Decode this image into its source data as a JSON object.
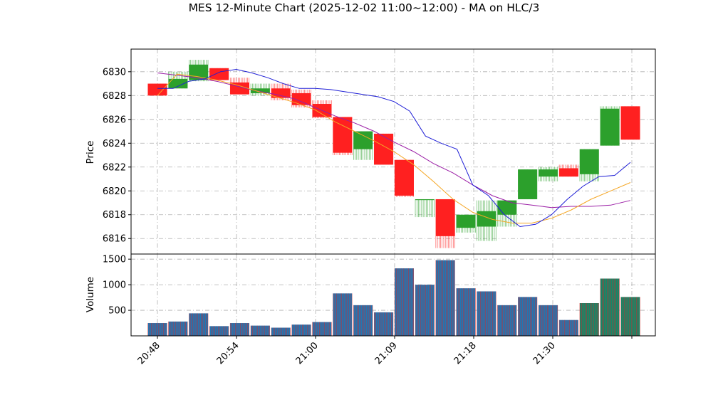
{
  "chart_data": {
    "type": "candlestick",
    "title": "MES 12-Minute Chart (2025-12-02 11:00~12:00) - MA on HLC/3",
    "price_axis": {
      "label": "Price",
      "ylim": [
        6814.7,
        6831.9
      ],
      "ticks": [
        6816,
        6818,
        6820,
        6822,
        6824,
        6826,
        6828,
        6830
      ]
    },
    "volume_axis": {
      "label": "Volume",
      "ylim": [
        0,
        1600
      ],
      "ticks": [
        500,
        1000,
        1500
      ]
    },
    "x_ticks": [
      "20:48",
      "20:54",
      "21:00",
      "21:09",
      "21:18",
      "21:30"
    ],
    "grid": true,
    "colors": {
      "up": "#2ca02c",
      "down": "#ff2020",
      "ma_short": "#1f1fd6",
      "ma_mid": "#f5a623",
      "ma_long": "#9b1fa6",
      "vol_face": "#1f77b4",
      "vol_edge": "#d62728",
      "vol_up_right": "#0f8a6a"
    },
    "candles": [
      {
        "open": 6829.0,
        "high": 6829.0,
        "low": 6828.0,
        "close": 6828.0,
        "volume": 250
      },
      {
        "open": 6828.6,
        "high": 6830.0,
        "low": 6828.6,
        "close": 6829.4,
        "volume": 280
      },
      {
        "open": 6829.3,
        "high": 6831.0,
        "low": 6829.2,
        "close": 6830.6,
        "volume": 440
      },
      {
        "open": 6830.3,
        "high": 6830.3,
        "low": 6829.3,
        "close": 6829.3,
        "volume": 190
      },
      {
        "open": 6829.1,
        "high": 6829.5,
        "low": 6828.1,
        "close": 6828.1,
        "volume": 250
      },
      {
        "open": 6828.2,
        "high": 6829.0,
        "low": 6828.0,
        "close": 6828.6,
        "volume": 200
      },
      {
        "open": 6828.6,
        "high": 6829.0,
        "low": 6827.6,
        "close": 6827.8,
        "volume": 160
      },
      {
        "open": 6828.2,
        "high": 6828.5,
        "low": 6827.0,
        "close": 6827.2,
        "volume": 220
      },
      {
        "open": 6827.3,
        "high": 6827.6,
        "low": 6826.1,
        "close": 6826.2,
        "volume": 270
      },
      {
        "open": 6826.2,
        "high": 6826.2,
        "low": 6823.0,
        "close": 6823.2,
        "volume": 830
      },
      {
        "open": 6823.5,
        "high": 6825.0,
        "low": 6822.6,
        "close": 6825.0,
        "volume": 600
      },
      {
        "open": 6824.8,
        "high": 6824.8,
        "low": 6822.2,
        "close": 6822.2,
        "volume": 460
      },
      {
        "open": 6822.6,
        "high": 6822.6,
        "low": 6819.5,
        "close": 6819.6,
        "volume": 1320
      },
      {
        "open": 6819.3,
        "high": 6819.3,
        "low": 6817.8,
        "close": 6819.3,
        "volume": 1000
      },
      {
        "open": 6819.3,
        "high": 6819.3,
        "low": 6815.2,
        "close": 6816.2,
        "volume": 1480
      },
      {
        "open": 6816.9,
        "high": 6818.0,
        "low": 6816.5,
        "close": 6818.0,
        "volume": 930
      },
      {
        "open": 6817.0,
        "high": 6819.2,
        "low": 6815.8,
        "close": 6818.3,
        "volume": 870
      },
      {
        "open": 6818.0,
        "high": 6819.2,
        "low": 6817.0,
        "close": 6819.2,
        "volume": 600
      },
      {
        "open": 6819.3,
        "high": 6821.8,
        "low": 6819.3,
        "close": 6821.8,
        "volume": 760
      },
      {
        "open": 6821.2,
        "high": 6822.0,
        "low": 6820.8,
        "close": 6821.8,
        "volume": 600
      },
      {
        "open": 6821.9,
        "high": 6822.2,
        "low": 6821.2,
        "close": 6821.2,
        "volume": 310
      },
      {
        "open": 6821.4,
        "high": 6823.5,
        "low": 6820.8,
        "close": 6823.5,
        "volume": 640
      },
      {
        "open": 6823.8,
        "high": 6827.1,
        "low": 6823.8,
        "close": 6826.9,
        "volume": 1120
      },
      {
        "open": 6827.1,
        "high": 6827.1,
        "low": 6824.3,
        "close": 6824.3,
        "volume": 760
      }
    ],
    "ma_short": [
      6828.6,
      6828.6,
      6829.2,
      6829.4,
      6830.0,
      6830.2,
      6829.9,
      6829.5,
      6829.0,
      6828.6,
      6828.6,
      6828.5,
      6828.3,
      6828.1,
      6827.9,
      6827.5,
      6826.7,
      6824.6,
      6824.0,
      6823.5,
      6820.5,
      6819.6,
      6818.0,
      6817.0,
      6817.2,
      6818.0,
      6819.3,
      6820.4,
      6821.2,
      6821.3,
      6822.4
    ],
    "ma_mid": [
      6828.0,
      6829.8,
      6829.6,
      6829.3,
      6828.9,
      6828.4,
      6827.9,
      6827.4,
      6826.8,
      6825.8,
      6825.0,
      6824.2,
      6823.3,
      6822.2,
      6820.8,
      6819.3,
      6818.2,
      6817.6,
      6817.3,
      6817.3,
      6817.7,
      6818.4,
      6819.3,
      6820.0,
      6820.7
    ],
    "ma_long": [
      6829.9,
      6829.7,
      6829.5,
      6829.2,
      6828.8,
      6828.4,
      6828.1,
      6827.7,
      6827.0,
      6826.3,
      6825.7,
      6825.0,
      6824.1,
      6823.3,
      6822.3,
      6821.5,
      6820.5,
      6819.6,
      6819.0,
      6818.8,
      6818.6,
      6818.7,
      6818.7,
      6818.8,
      6819.2
    ]
  }
}
